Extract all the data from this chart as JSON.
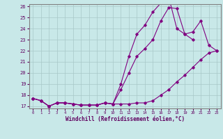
{
  "xlabel": "Windchill (Refroidissement éolien,°C)",
  "x": [
    0,
    1,
    2,
    3,
    4,
    5,
    6,
    7,
    8,
    9,
    10,
    11,
    12,
    13,
    14,
    15,
    16,
    17,
    18,
    19,
    20,
    21,
    22,
    23
  ],
  "line1": [
    17.7,
    17.5,
    17.0,
    17.3,
    17.3,
    17.2,
    17.1,
    17.1,
    17.1,
    17.3,
    17.2,
    18.5,
    20.0,
    21.5,
    22.2,
    23.0,
    24.7,
    25.9,
    25.8,
    23.5,
    23.7,
    24.7,
    22.5,
    22.0
  ],
  "line2": [
    17.7,
    17.5,
    17.0,
    17.3,
    17.3,
    17.2,
    17.1,
    17.1,
    17.1,
    17.3,
    17.2,
    17.2,
    17.2,
    17.3,
    17.3,
    17.5,
    18.0,
    18.5,
    19.2,
    19.8,
    20.5,
    21.2,
    21.8,
    22.0
  ],
  "line3": [
    17.7,
    17.5,
    17.0,
    17.3,
    17.3,
    17.2,
    17.1,
    17.1,
    17.1,
    17.3,
    17.2,
    19.0,
    21.5,
    23.5,
    24.3,
    25.5,
    26.3,
    26.8,
    24.0,
    23.5,
    23.0,
    null,
    null,
    null
  ],
  "line_color": "#800080",
  "bg_color": "#c8e8e8",
  "grid_color": "#a8c8c8",
  "ylim": [
    16.8,
    26.2
  ],
  "xlim": [
    -0.5,
    23.5
  ],
  "yticks": [
    17,
    18,
    19,
    20,
    21,
    22,
    23,
    24,
    25,
    26
  ],
  "xticks": [
    0,
    1,
    2,
    3,
    4,
    5,
    6,
    7,
    8,
    9,
    10,
    11,
    12,
    13,
    14,
    15,
    16,
    17,
    18,
    19,
    20,
    21,
    22,
    23
  ]
}
